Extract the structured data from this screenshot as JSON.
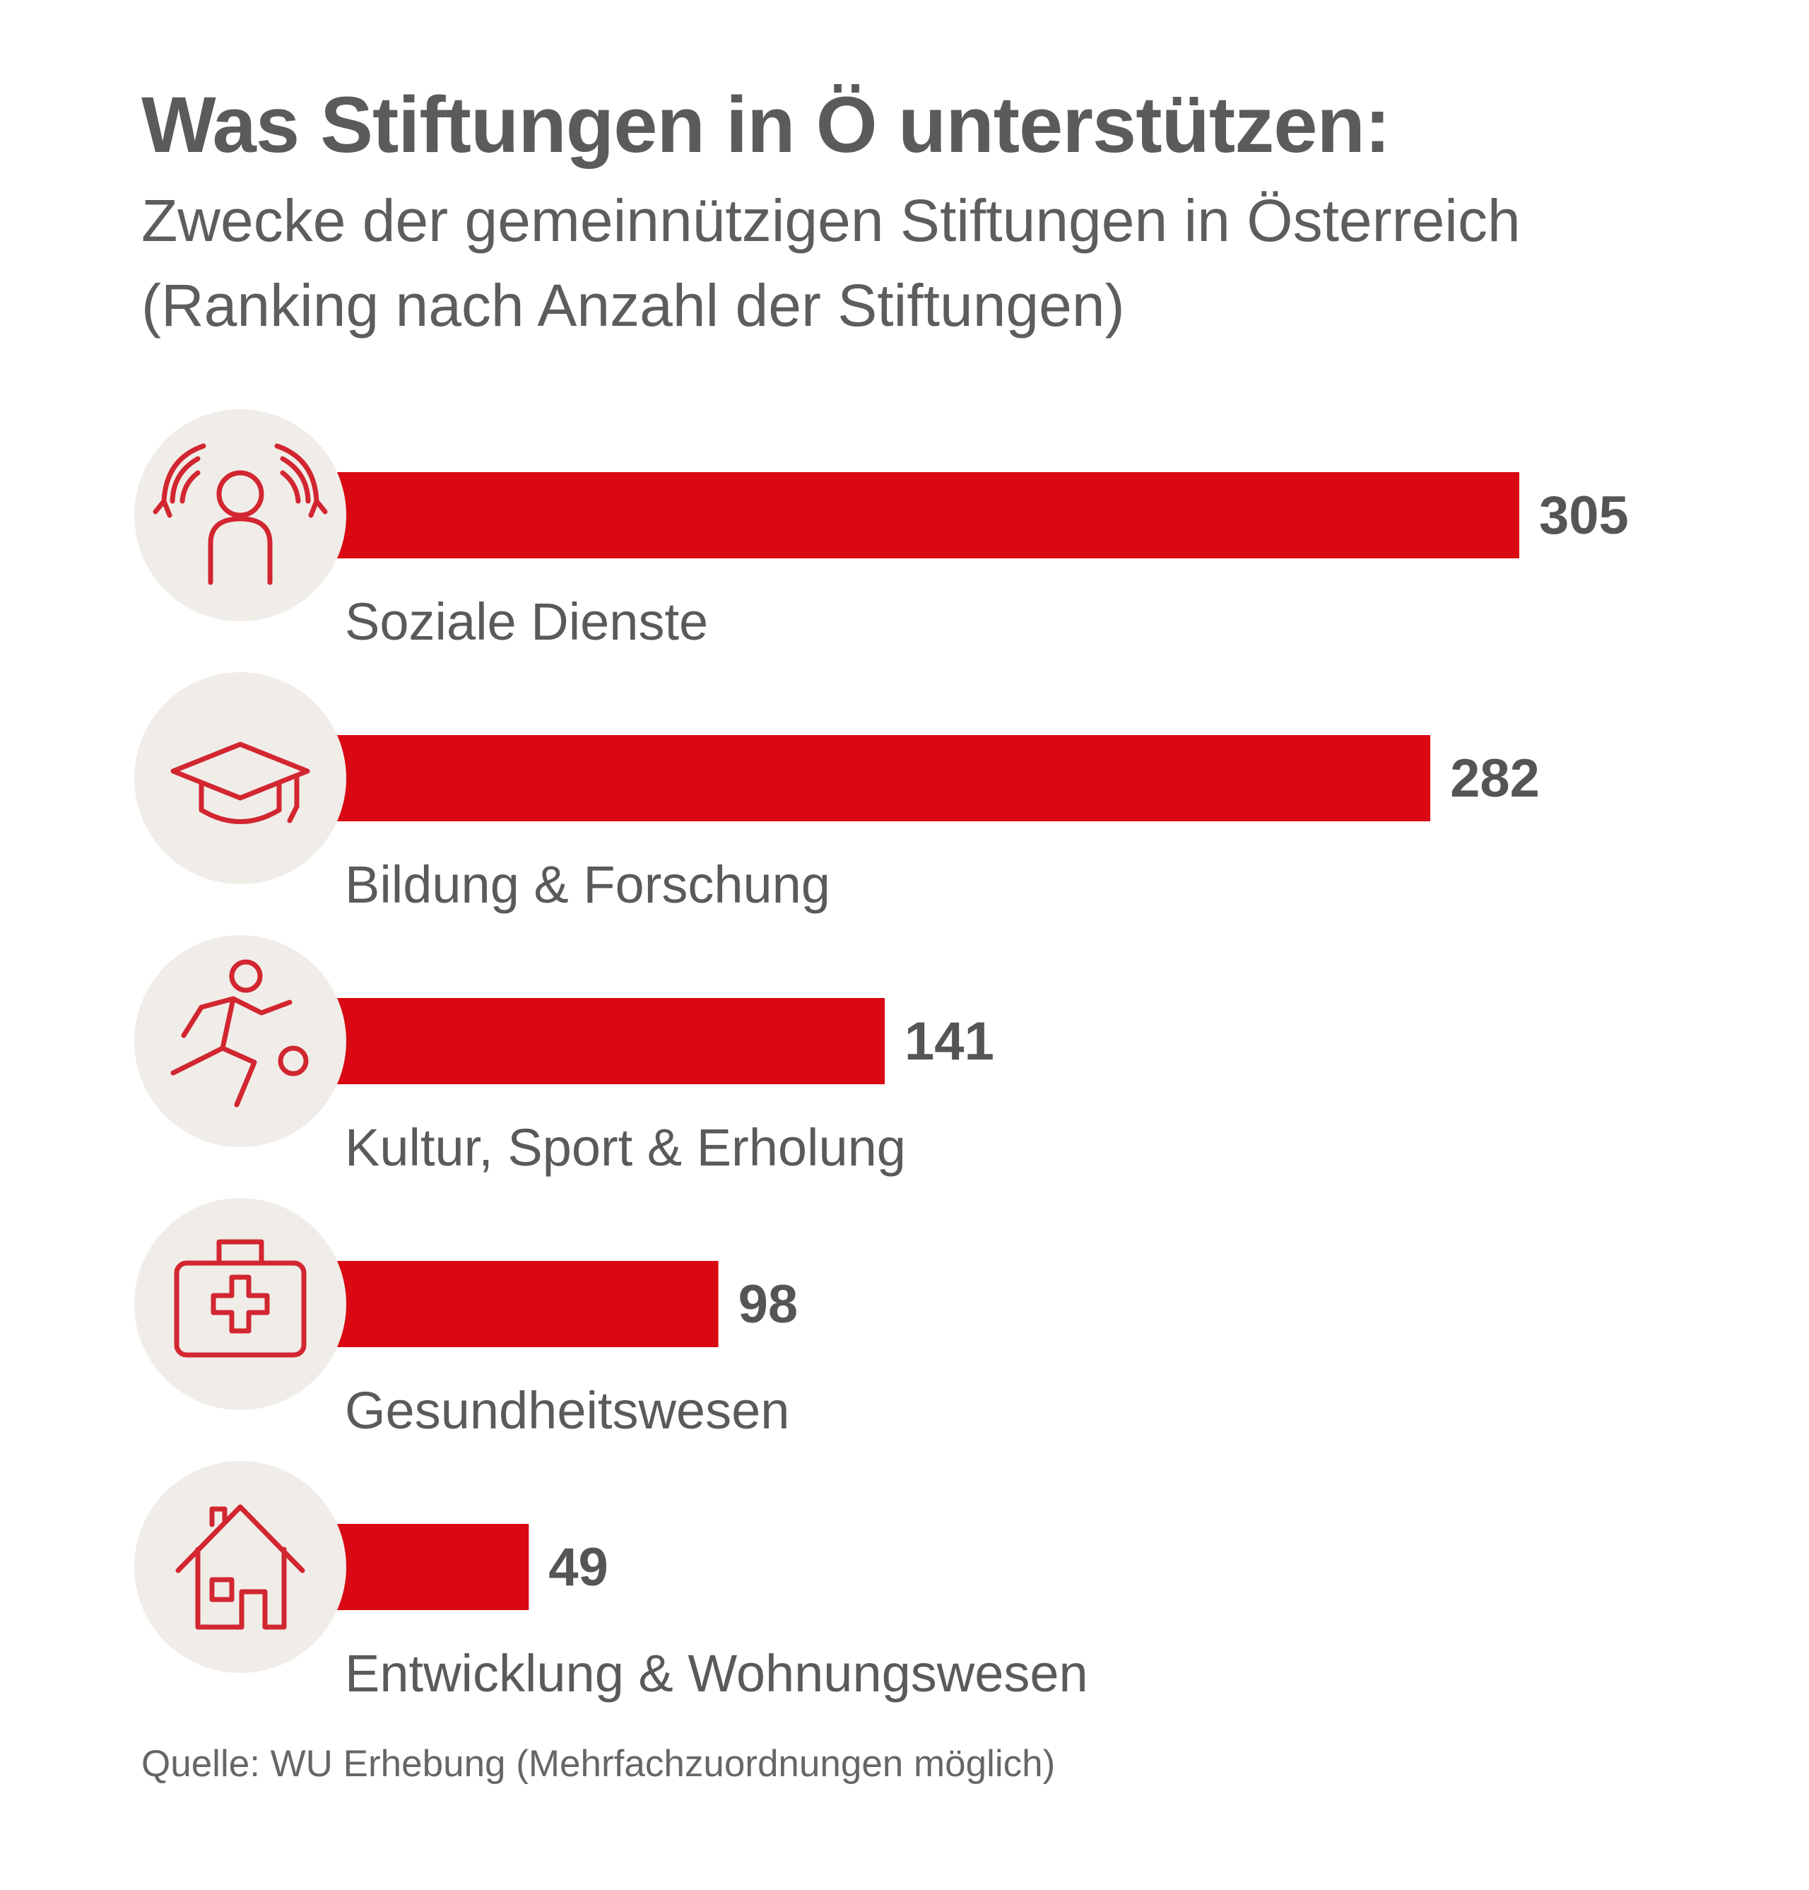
{
  "title": "Was Stiftungen in Ö unterstützen:",
  "subtitle": "Zwecke der gemeinnützigen Stiftungen in Österreich (Ranking nach Anzahl der Stiftungen)",
  "source": "Quelle: WU Erhebung (Mehrfachzuordnungen möglich)",
  "colors": {
    "bar": "#d90812",
    "icon_stroke": "#d22630",
    "icon_bg": "#f0ede9",
    "text": "#5a5a5a"
  },
  "chart_data": {
    "type": "bar",
    "orientation": "horizontal",
    "title": "Was Stiftungen in Ö unterstützen:",
    "subtitle": "Zwecke der gemeinnützigen Stiftungen in Österreich (Ranking nach Anzahl der Stiftungen)",
    "xlabel": "",
    "ylabel": "",
    "xlim": [
      0,
      305
    ],
    "grid": false,
    "categories": [
      "Soziale Dienste",
      "Bildung & Forschung",
      "Kultur, Sport & Erholung",
      "Gesundheitswesen",
      "Entwicklung & Wohnungswesen"
    ],
    "values": [
      305,
      282,
      141,
      98,
      49
    ],
    "icons": [
      "caring-hands-person-icon",
      "graduation-cap-icon",
      "football-player-icon",
      "first-aid-kit-icon",
      "house-icon"
    ]
  }
}
